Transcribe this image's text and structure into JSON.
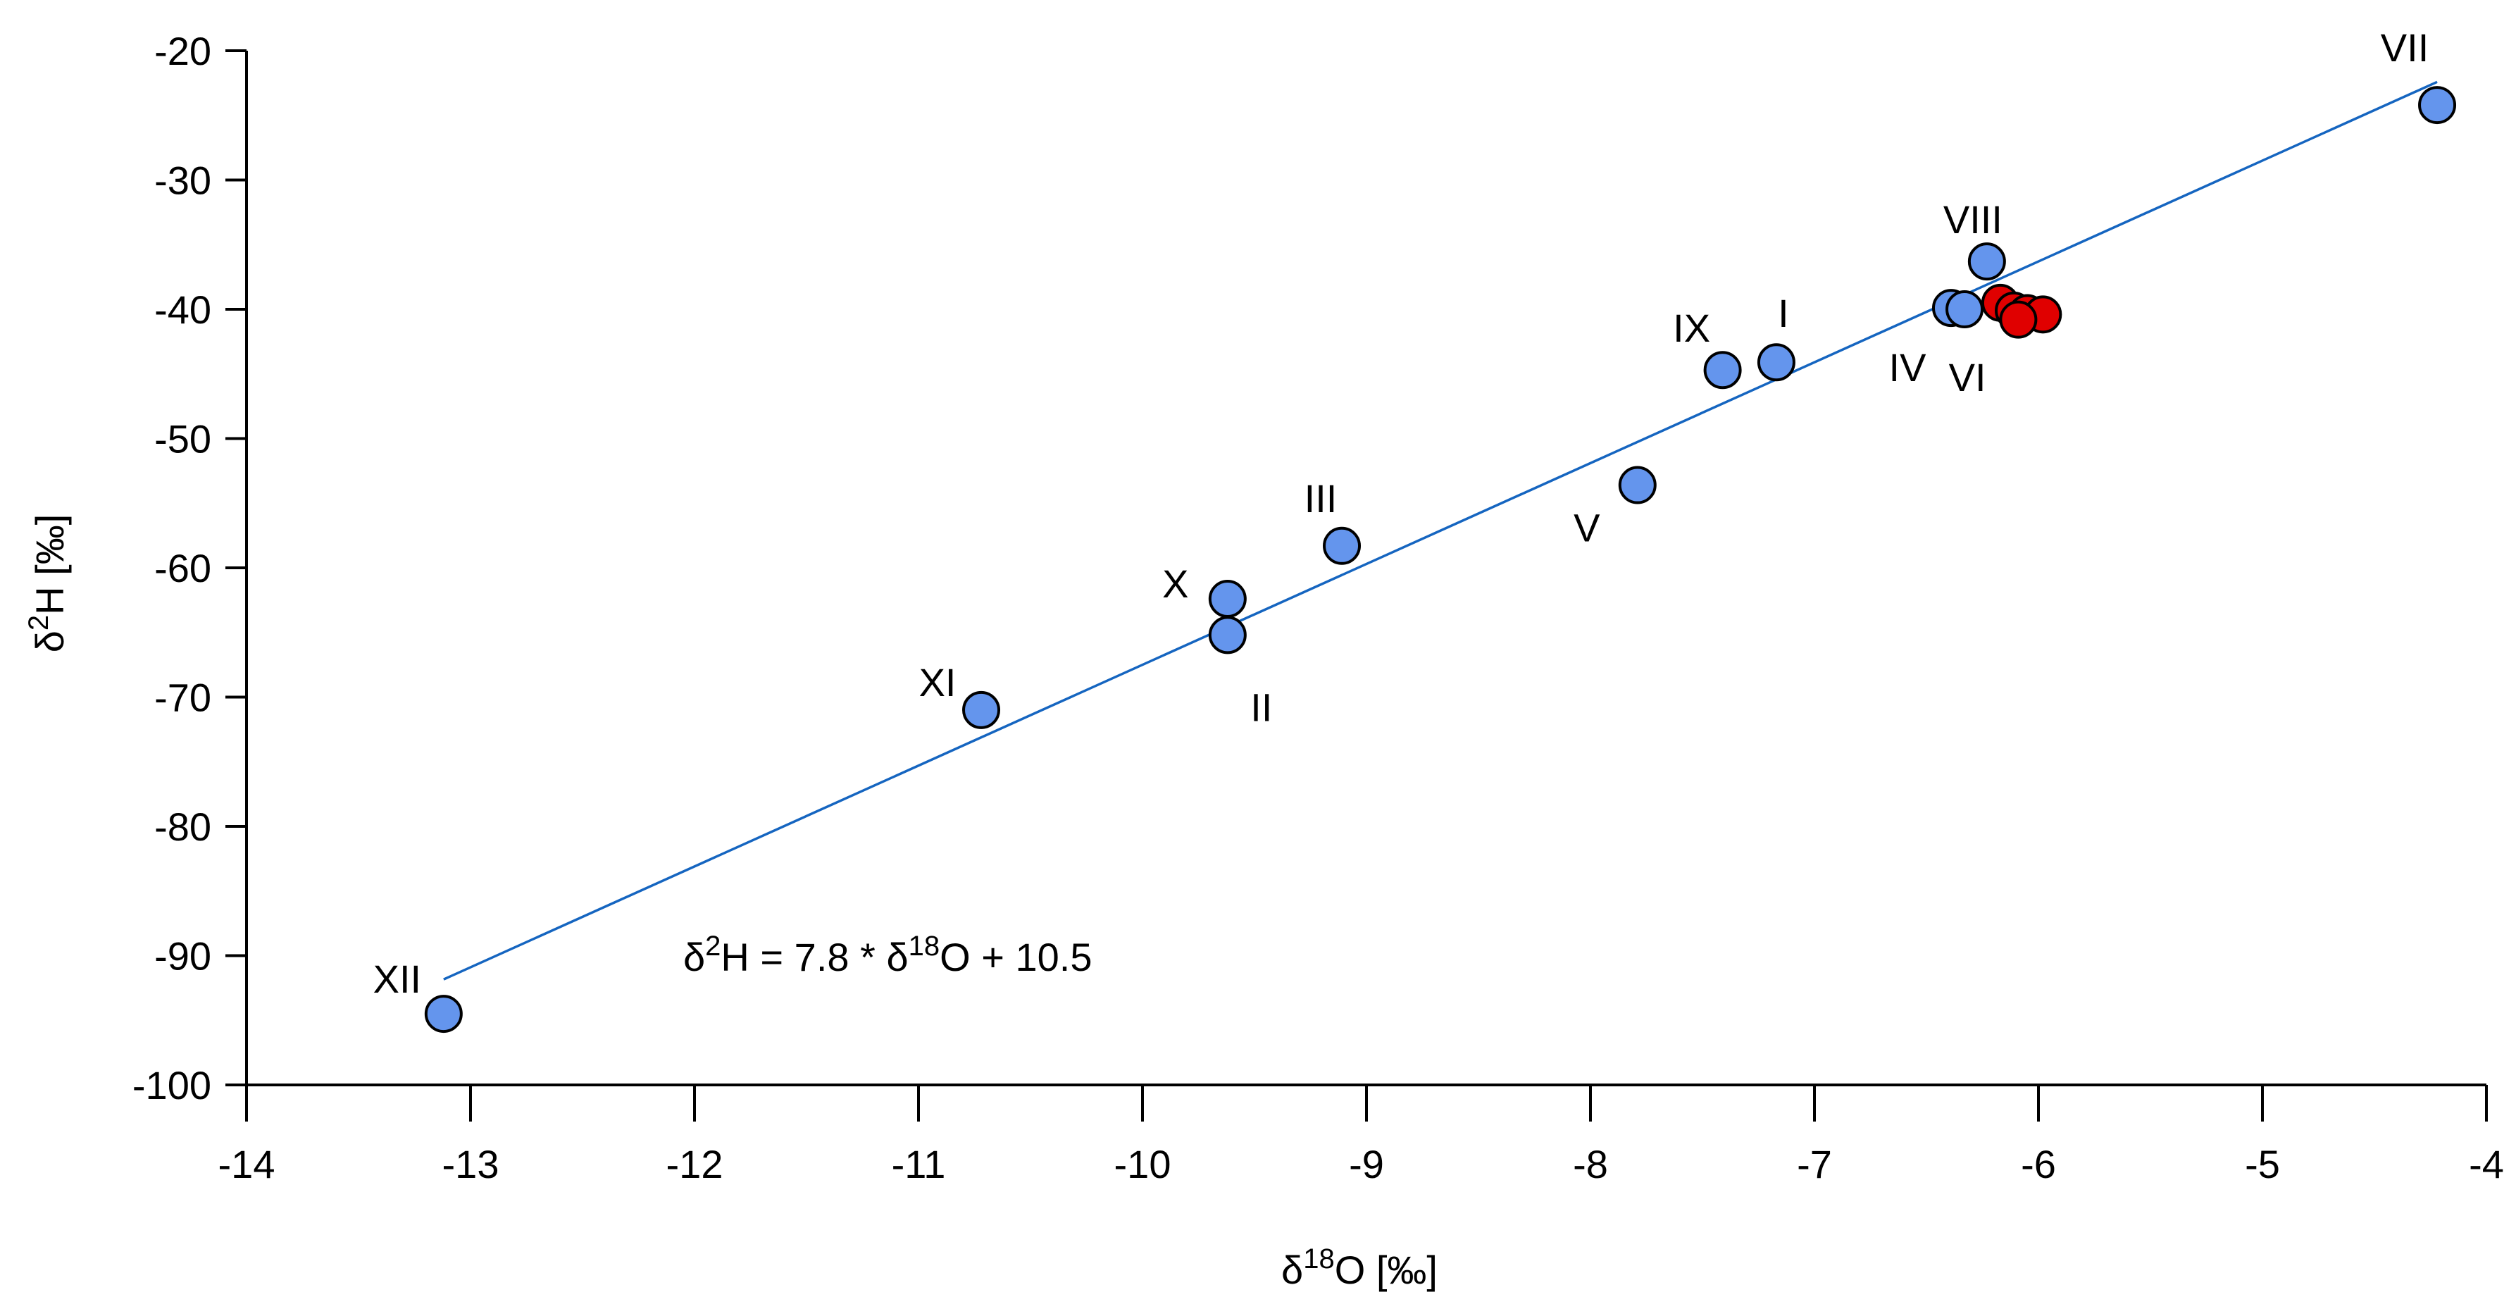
{
  "chart_data": {
    "type": "scatter",
    "xlabel_parts": [
      "δ",
      "18",
      "O [‰]"
    ],
    "ylabel_parts": [
      "δ",
      "2",
      "H [‰]"
    ],
    "xlim": [
      -14,
      -4
    ],
    "ylim": [
      -100,
      -20
    ],
    "x_ticks": [
      -14,
      -13,
      -12,
      -11,
      -10,
      -9,
      -8,
      -7,
      -6,
      -5,
      -4
    ],
    "y_ticks": [
      -20,
      -30,
      -40,
      -50,
      -60,
      -70,
      -80,
      -90,
      -100
    ],
    "x_tick_labels": [
      "-14",
      "-13",
      "-12",
      "-11",
      "-10",
      "-9",
      "-8",
      "-7",
      "-6",
      "-5",
      "-4"
    ],
    "y_tick_labels": [
      "-20",
      "-30",
      "-40",
      "-50",
      "-60",
      "-70",
      "-80",
      "-90",
      "-100"
    ],
    "grid": false,
    "colors": {
      "monthly": "#6495ed",
      "other": "#e00000",
      "fit_line": "#1565c0",
      "outline": "#000000"
    },
    "series": [
      {
        "points": [
          {
            "label": "I",
            "x": -7.17,
            "y": -44.1
          },
          {
            "label": "II",
            "x": -9.62,
            "y": -65.2
          },
          {
            "label": "III",
            "x": -9.11,
            "y": -58.3
          },
          {
            "label": "IV",
            "x": -6.39,
            "y": -39.9
          },
          {
            "label": "V",
            "x": -7.79,
            "y": -53.6
          },
          {
            "label": "VI",
            "x": -6.33,
            "y": -40.0
          },
          {
            "label": "VII",
            "x": -4.22,
            "y": -24.2
          },
          {
            "label": "VIII",
            "x": -6.23,
            "y": -36.3
          },
          {
            "label": "IX",
            "x": -7.41,
            "y": -44.7
          },
          {
            "label": "X",
            "x": -9.62,
            "y": -62.4
          },
          {
            "label": "XI",
            "x": -10.72,
            "y": -71.0
          },
          {
            "label": "XII",
            "x": -13.12,
            "y": -94.5
          }
        ]
      },
      {
        "points": [
          {
            "x": -6.17,
            "y": -39.5
          },
          {
            "x": -6.11,
            "y": -40.1
          },
          {
            "x": -6.05,
            "y": -40.3
          },
          {
            "x": -5.98,
            "y": -40.4
          },
          {
            "x": -6.09,
            "y": -40.8
          }
        ]
      }
    ],
    "fit_line": {
      "slope": 7.8,
      "intercept": 10.5,
      "x_range": [
        -13.12,
        -4.22
      ]
    },
    "equation_parts": [
      "δ",
      "2",
      "H = 7.8 * δ",
      "18",
      "O + 10.5"
    ]
  }
}
